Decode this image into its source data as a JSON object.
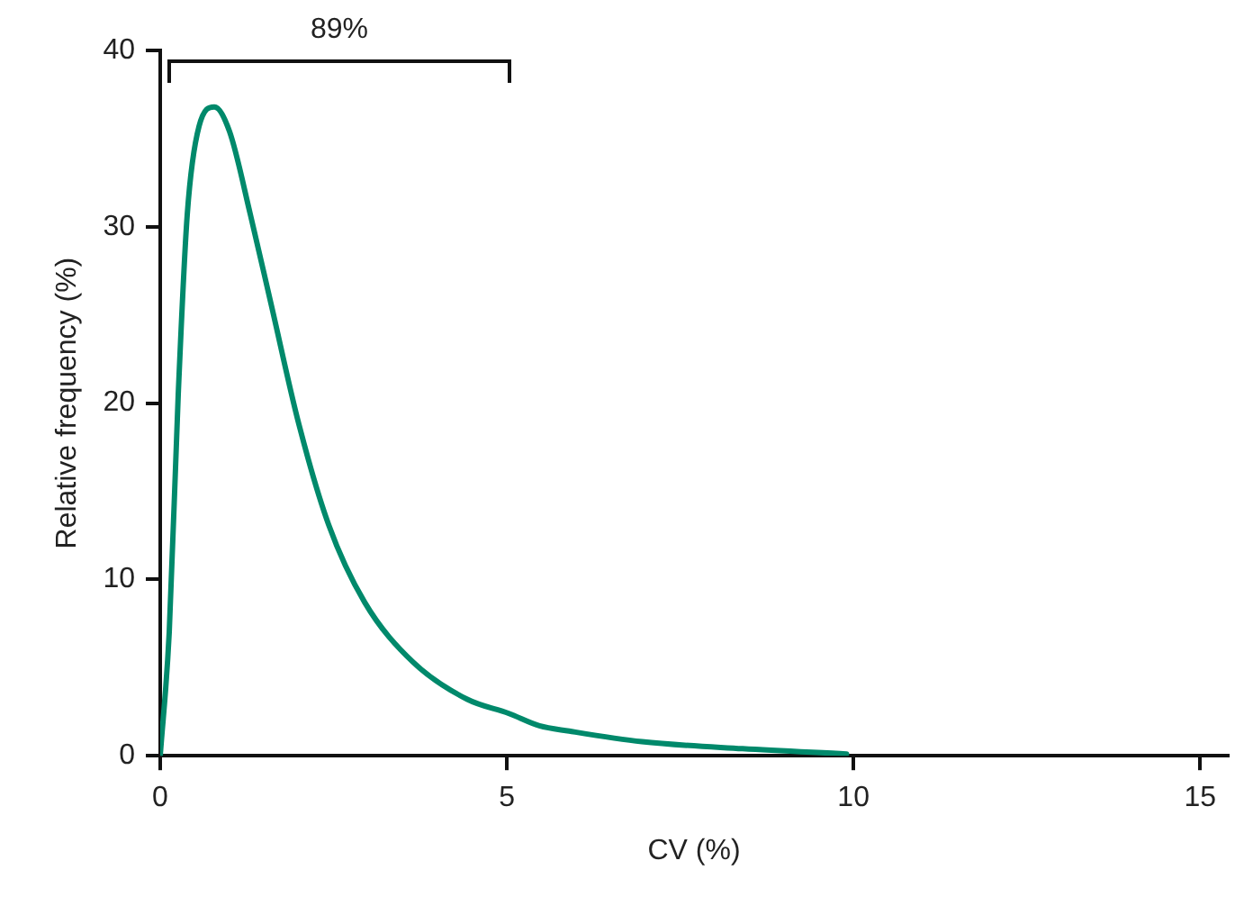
{
  "chart_data": {
    "type": "line",
    "xlabel": "CV (%)",
    "ylabel": "Relative frequency (%)",
    "series": [
      {
        "color": "#00896b",
        "x": [
          0,
          0.13,
          0.26,
          0.39,
          0.56,
          0.78,
          1.0,
          1.3,
          1.6,
          2.0,
          2.43,
          2.95,
          3.65,
          4.43,
          5.03,
          5.47,
          5.9,
          6.95,
          8.4,
          9.9
        ],
        "values": [
          0,
          7.0,
          20.5,
          30.7,
          35.7,
          36.8,
          35.4,
          30.7,
          25.6,
          18.8,
          13.1,
          8.7,
          5.3,
          3.2,
          2.4,
          1.7,
          1.4,
          0.8,
          0.4,
          0.1
        ]
      }
    ],
    "xlim": [
      0,
      15.4
    ],
    "xticks": [
      0,
      5,
      10,
      15
    ],
    "ylim": [
      0,
      40
    ],
    "yticks": [
      0,
      10,
      20,
      30,
      40
    ],
    "annotations": [
      "89%"
    ],
    "grid": false,
    "legend": false,
    "marker": "none",
    "line_style": "solid"
  }
}
